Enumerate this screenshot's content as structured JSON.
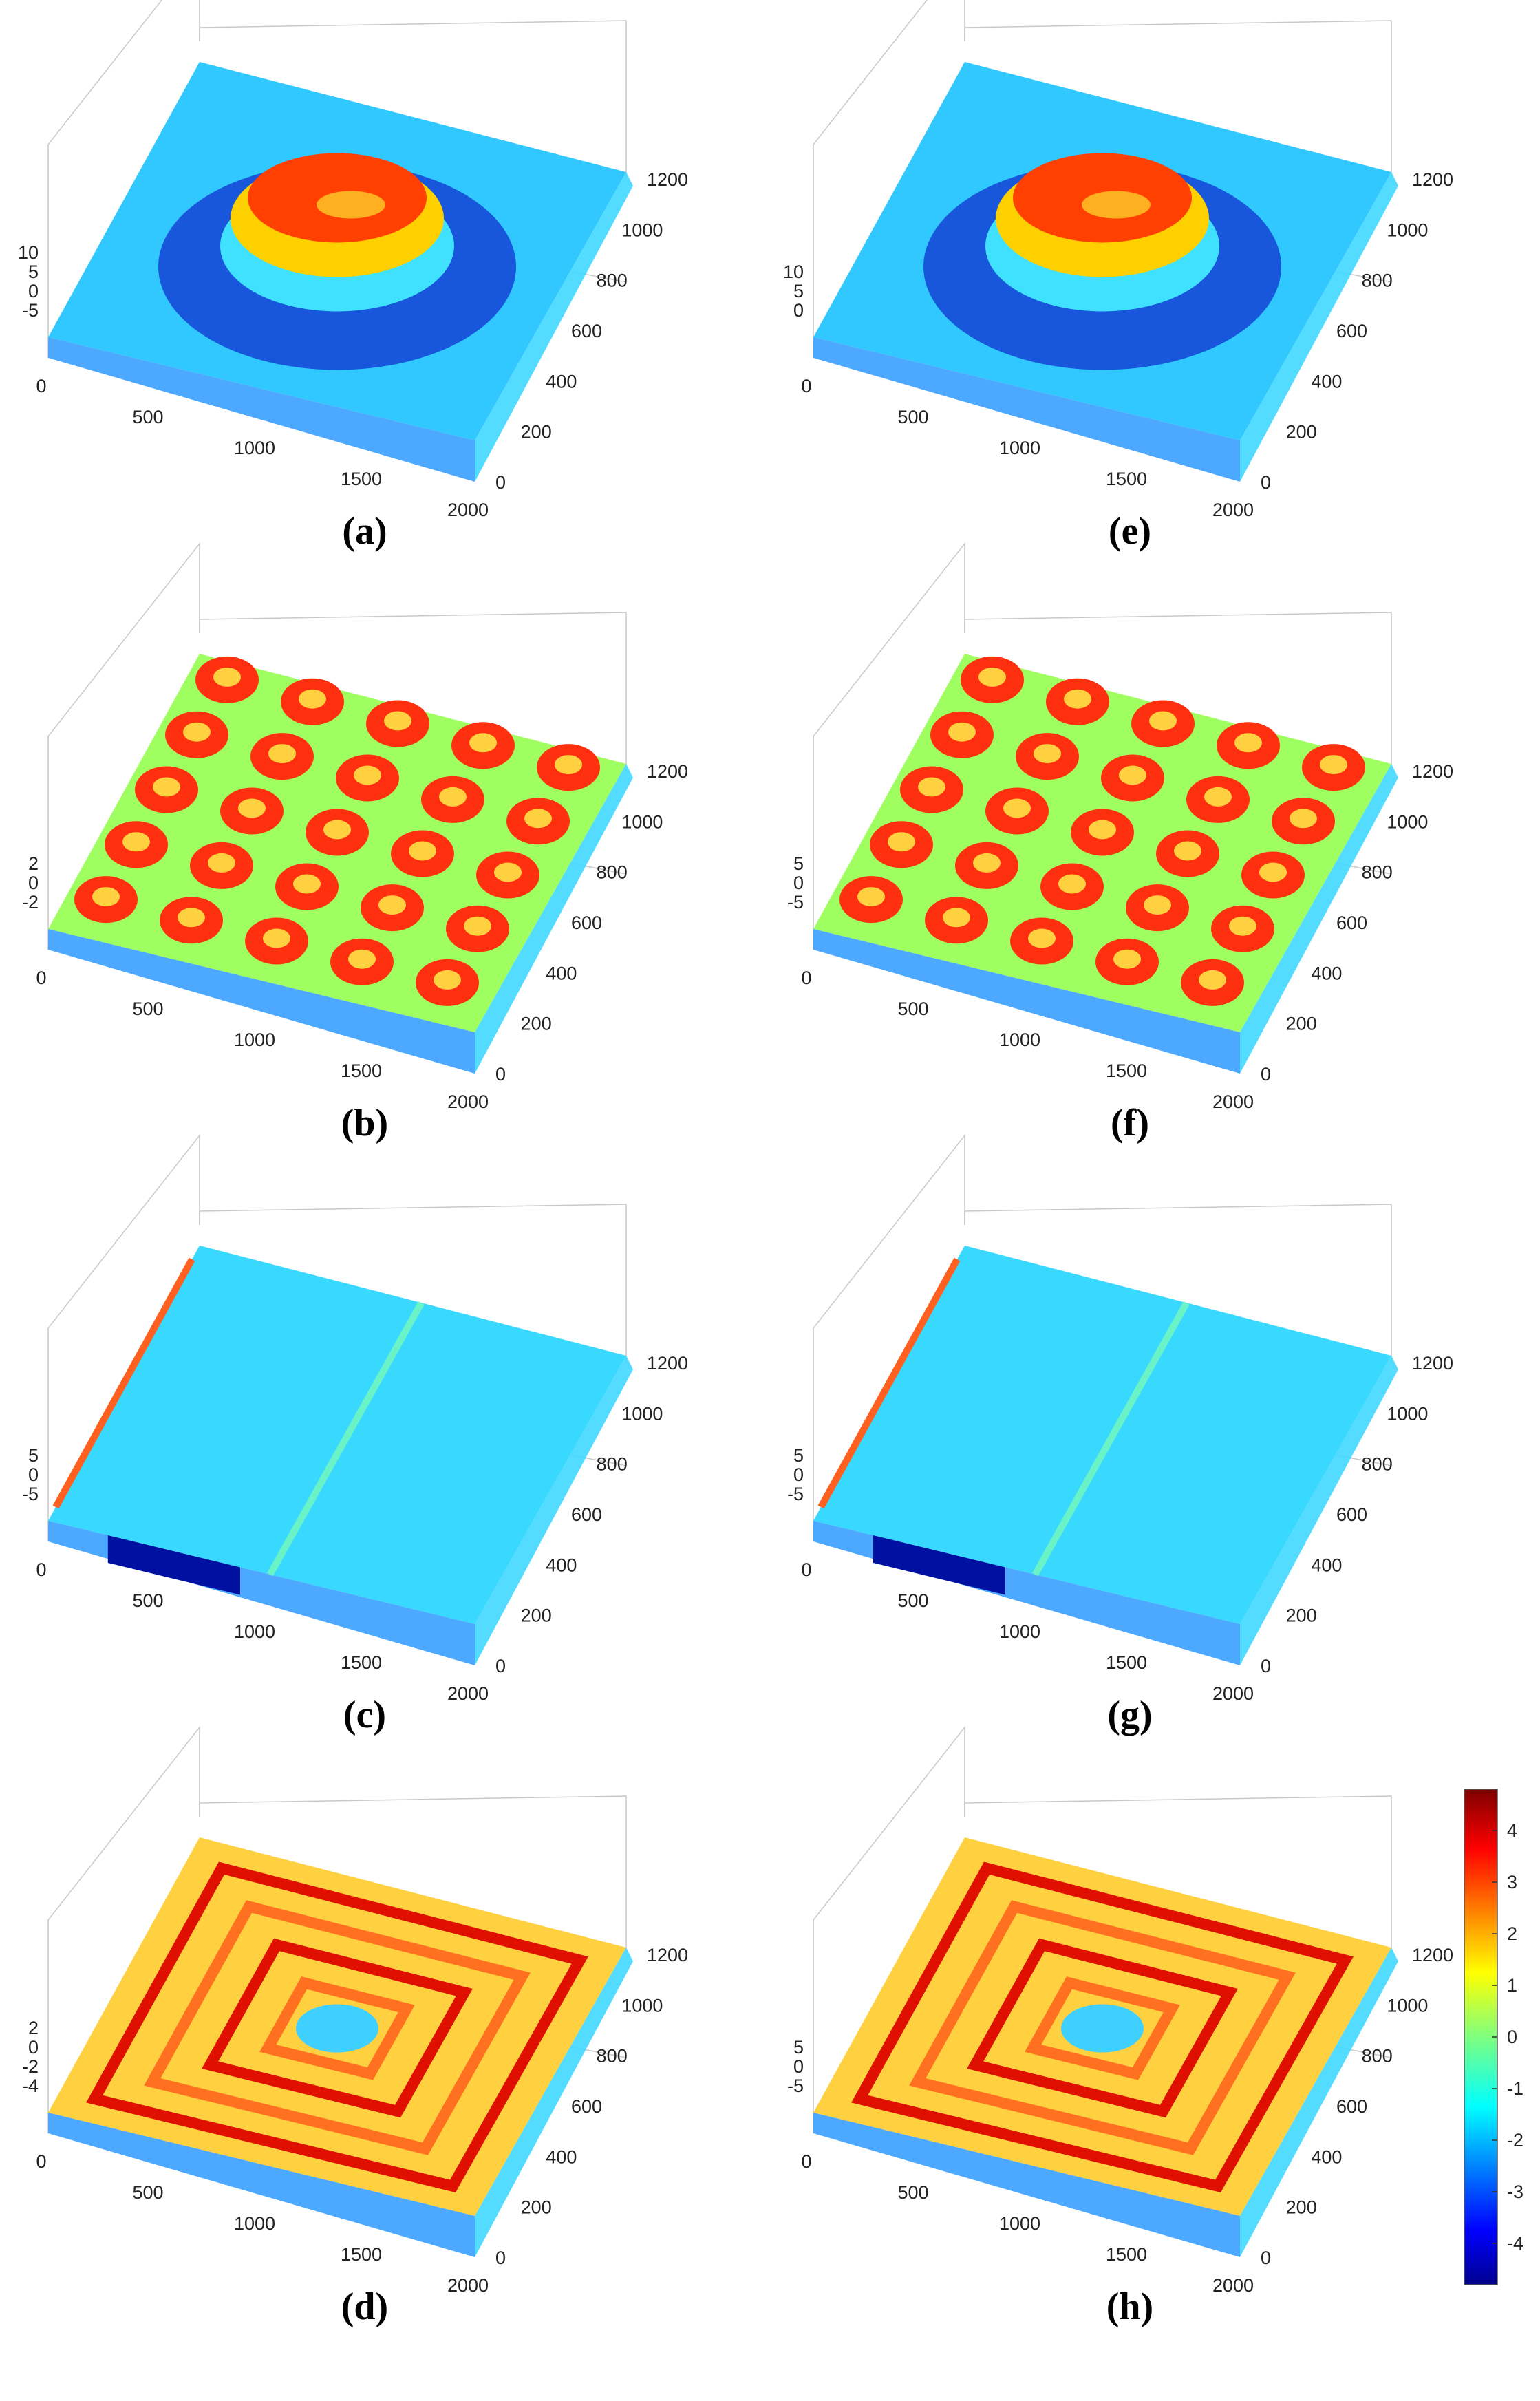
{
  "figure": {
    "panels": [
      {
        "id": "a",
        "label": "(a)",
        "kind": "single-bump",
        "z_ticks": [
          "10",
          "5",
          "0",
          "-5"
        ]
      },
      {
        "id": "b",
        "label": "(b)",
        "kind": "bump-grid",
        "z_ticks": [
          "2",
          "0",
          "-2"
        ]
      },
      {
        "id": "c",
        "label": "(c)",
        "kind": "flat-step",
        "z_ticks": [
          "5",
          "0",
          "-5"
        ]
      },
      {
        "id": "d",
        "label": "(d)",
        "kind": "concentric",
        "z_ticks": [
          "2",
          "0",
          "-2",
          "-4"
        ]
      },
      {
        "id": "e",
        "label": "(e)",
        "kind": "single-bump",
        "z_ticks": [
          "10",
          "5",
          "0"
        ]
      },
      {
        "id": "f",
        "label": "(f)",
        "kind": "bump-grid",
        "z_ticks": [
          "5",
          "0",
          "-5"
        ]
      },
      {
        "id": "g",
        "label": "(g)",
        "kind": "flat-step",
        "z_ticks": [
          "5",
          "0",
          "-5"
        ]
      },
      {
        "id": "h",
        "label": "(h)",
        "kind": "concentric",
        "z_ticks": [
          "5",
          "0",
          "-5"
        ]
      }
    ],
    "x_ticks": [
      "0",
      "500",
      "1000",
      "1500",
      "2000"
    ],
    "y_ticks": [
      "0",
      "200",
      "400",
      "600",
      "800",
      "1000",
      "1200"
    ],
    "colorbar": {
      "colormap": "jet",
      "ticks": [
        "4",
        "3",
        "2",
        "1",
        "0",
        "-1",
        "-2",
        "-3",
        "-4"
      ],
      "range": [
        -4.8,
        4.8
      ]
    }
  },
  "chart_data": [
    {
      "type": "surface",
      "label": "(a)",
      "x_range": [
        0,
        2000
      ],
      "y_range": [
        0,
        1200
      ],
      "z_range": [
        -5,
        10
      ],
      "description_values": {
        "peak_z": 9,
        "trough_z": -5
      }
    },
    {
      "type": "surface",
      "label": "(b)",
      "x_range": [
        0,
        2000
      ],
      "y_range": [
        0,
        1200
      ],
      "z_range": [
        -2,
        2
      ]
    },
    {
      "type": "surface",
      "label": "(c)",
      "x_range": [
        0,
        2000
      ],
      "y_range": [
        0,
        1200
      ],
      "z_range": [
        -5,
        5
      ]
    },
    {
      "type": "surface",
      "label": "(d)",
      "x_range": [
        0,
        2000
      ],
      "y_range": [
        0,
        1200
      ],
      "z_range": [
        -4,
        2
      ]
    },
    {
      "type": "surface",
      "label": "(e)",
      "x_range": [
        0,
        2000
      ],
      "y_range": [
        0,
        1200
      ],
      "z_range": [
        0,
        10
      ]
    },
    {
      "type": "surface",
      "label": "(f)",
      "x_range": [
        0,
        2000
      ],
      "y_range": [
        0,
        1200
      ],
      "z_range": [
        -5,
        5
      ]
    },
    {
      "type": "surface",
      "label": "(g)",
      "x_range": [
        0,
        2000
      ],
      "y_range": [
        0,
        1200
      ],
      "z_range": [
        -5,
        5
      ]
    },
    {
      "type": "surface",
      "label": "(h)",
      "x_range": [
        0,
        2000
      ],
      "y_range": [
        0,
        1200
      ],
      "z_range": [
        -5,
        5
      ]
    }
  ]
}
